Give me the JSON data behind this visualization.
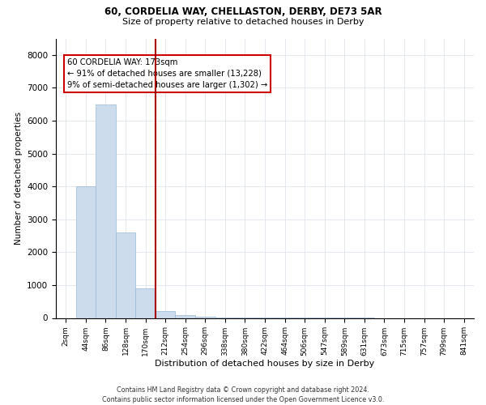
{
  "title1": "60, CORDELIA WAY, CHELLASTON, DERBY, DE73 5AR",
  "title2": "Size of property relative to detached houses in Derby",
  "xlabel": "Distribution of detached houses by size in Derby",
  "ylabel": "Number of detached properties",
  "footnote": "Contains HM Land Registry data © Crown copyright and database right 2024.\nContains public sector information licensed under the Open Government Licence v3.0.",
  "bin_labels": [
    "2sqm",
    "44sqm",
    "86sqm",
    "128sqm",
    "170sqm",
    "212sqm",
    "254sqm",
    "296sqm",
    "338sqm",
    "380sqm",
    "422sqm",
    "464sqm",
    "506sqm",
    "547sqm",
    "589sqm",
    "631sqm",
    "673sqm",
    "715sqm",
    "757sqm",
    "799sqm",
    "841sqm"
  ],
  "bar_values": [
    0,
    4000,
    6500,
    2600,
    900,
    200,
    80,
    40,
    20,
    10,
    5,
    3,
    2,
    2,
    1,
    1,
    0,
    0,
    0,
    0,
    0
  ],
  "bar_color": "#cddcec",
  "bar_edge_color": "#9ab8d5",
  "ylim": [
    0,
    8500
  ],
  "yticks": [
    0,
    1000,
    2000,
    3000,
    4000,
    5000,
    6000,
    7000,
    8000
  ],
  "property_line_color": "#aa0000",
  "annotation_text": "60 CORDELIA WAY: 173sqm\n← 91% of detached houses are smaller (13,228)\n9% of semi-detached houses are larger (1,302) →",
  "annotation_box_color": "#cc0000",
  "background_color": "#ffffff",
  "grid_color": "#d8e0e8"
}
